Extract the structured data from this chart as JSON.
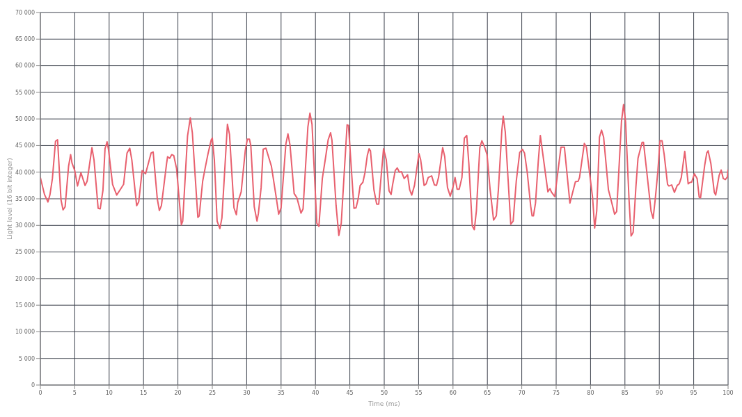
{
  "chart_data": {
    "type": "line",
    "xlabel": "Time (ms)",
    "ylabel": "Light level (16 bit integer)",
    "xlim": [
      0,
      100
    ],
    "xticks": [
      0,
      5,
      10,
      15,
      20,
      25,
      30,
      35,
      40,
      45,
      50,
      55,
      60,
      65,
      70,
      75,
      80,
      85,
      90,
      95,
      100
    ],
    "ylim": [
      0,
      70000
    ],
    "yticks": [
      {
        "value": 0,
        "label": "0"
      },
      {
        "value": 5000,
        "label": "5 000"
      },
      {
        "value": 10000,
        "label": "10 000"
      },
      {
        "value": 15000,
        "label": "15 000"
      },
      {
        "value": 20000,
        "label": "20 000"
      },
      {
        "value": 25000,
        "label": "25 000"
      },
      {
        "value": 30000,
        "label": "30 000"
      },
      {
        "value": 35000,
        "label": "35 000"
      },
      {
        "value": 40000,
        "label": "40 000"
      },
      {
        "value": 45000,
        "label": "45 000"
      },
      {
        "value": 50000,
        "label": "50 000"
      },
      {
        "value": 55000,
        "label": "55 000"
      },
      {
        "value": 60000,
        "label": "60 000"
      },
      {
        "value": 65000,
        "label": "65 000"
      },
      {
        "value": 70000,
        "label": "70 000"
      }
    ],
    "grid": true,
    "legend": false,
    "marker": "none",
    "line_style": "solid",
    "series": [
      {
        "color": "#e8606e",
        "x": [
          0,
          0.6,
          1.1,
          1.4,
          1.75,
          2.2,
          2.5,
          3.0,
          3.3,
          3.6,
          4.1,
          4.4,
          4.6,
          5.0,
          5.4,
          5.9,
          6.5,
          6.8,
          7.5,
          7.8,
          8.4,
          8.7,
          9.1,
          9.4,
          9.7,
          9.9,
          10.5,
          11.1,
          11.65,
          12.1,
          12.6,
          13.0,
          13.3,
          14.0,
          14.3,
          14.8,
          15.3,
          16.1,
          16.4,
          17.0,
          17.3,
          17.6,
          18.35,
          18.5,
          18.8,
          19.1,
          19.4,
          19.8,
          20.5,
          20.7,
          21.4,
          21.8,
          22.1,
          22.9,
          23.1,
          23.6,
          23.95,
          24.4,
          24.85,
          25.0,
          25.3,
          25.7,
          26.1,
          26.4,
          27.2,
          27.5,
          28.15,
          28.5,
          28.7,
          29.2,
          29.8,
          30.1,
          30.4,
          30.6,
          31.1,
          31.5,
          31.7,
          32.1,
          32.4,
          32.8,
          33.6,
          34.3,
          34.65,
          35.0,
          35.7,
          36.0,
          36.3,
          36.9,
          37.3,
          37.9,
          38.2,
          38.9,
          39.2,
          39.5,
          40.2,
          40.5,
          41.0,
          41.5,
          41.85,
          42.2,
          42.4,
          43.0,
          43.4,
          43.75,
          44.6,
          44.8,
          45.6,
          45.9,
          46.2,
          46.5,
          46.9,
          47.2,
          47.55,
          47.8,
          48.0,
          48.5,
          48.9,
          49.2,
          49.9,
          50.3,
          50.7,
          51.0,
          51.2,
          51.6,
          51.9,
          52.2,
          52.5,
          52.9,
          53.4,
          53.7,
          54.0,
          54.4,
          55.05,
          55.3,
          55.8,
          56.1,
          56.4,
          56.9,
          57.3,
          57.6,
          57.9,
          58.5,
          58.8,
          59.2,
          59.6,
          60.0,
          60.3,
          60.6,
          60.9,
          61.3,
          61.65,
          62.0,
          62.3,
          62.8,
          63.1,
          63.4,
          63.9,
          64.2,
          64.6,
          64.95,
          65.4,
          65.9,
          66.3,
          66.6,
          67.1,
          67.3,
          67.6,
          68.1,
          68.4,
          68.75,
          69.2,
          69.7,
          70.1,
          70.4,
          70.8,
          71.3,
          71.5,
          71.7,
          72.0,
          72.4,
          72.7,
          73.0,
          73.8,
          74.1,
          74.3,
          74.8,
          75.7,
          76.2,
          77.0,
          77.8,
          78.2,
          78.4,
          79.1,
          79.4,
          80.3,
          80.6,
          80.9,
          81.3,
          81.6,
          81.9,
          82.6,
          83.1,
          83.5,
          83.8,
          84.5,
          84.8,
          85.1,
          85.6,
          85.9,
          86.2,
          86.6,
          86.9,
          87.5,
          87.7,
          88.2,
          88.8,
          89.1,
          89.4,
          89.8,
          90.1,
          90.4,
          90.7,
          91.2,
          91.4,
          91.8,
          92.2,
          92.6,
          92.9,
          93.2,
          93.7,
          94.2,
          94.5,
          94.7,
          95.1,
          95.5,
          95.8,
          96.0,
          96.6,
          96.9,
          97.1,
          97.5,
          98.0,
          98.2,
          98.7,
          99.0,
          99.3,
          99.6,
          99.9,
          100
        ],
        "values": [
          39000,
          35800,
          34400,
          35800,
          38800,
          45800,
          46100,
          34800,
          32900,
          33500,
          41100,
          43300,
          41700,
          40300,
          37400,
          39900,
          37500,
          38300,
          44600,
          42300,
          33200,
          33100,
          36600,
          44400,
          45700,
          44300,
          37700,
          35700,
          36800,
          37700,
          43600,
          44500,
          42300,
          33700,
          34400,
          40300,
          39700,
          43600,
          43800,
          35000,
          32800,
          33700,
          41600,
          42900,
          42600,
          43300,
          43100,
          40700,
          30100,
          30800,
          46800,
          50200,
          47400,
          31500,
          31800,
          38300,
          40700,
          43600,
          46100,
          46400,
          42300,
          30800,
          29400,
          31400,
          49000,
          47100,
          33300,
          32000,
          34300,
          36300,
          44100,
          46200,
          46200,
          45000,
          33500,
          30800,
          32200,
          37100,
          44300,
          44500,
          41100,
          35200,
          32100,
          33300,
          45300,
          47200,
          45100,
          36000,
          35200,
          32300,
          33100,
          48500,
          51100,
          49000,
          30400,
          29800,
          38800,
          43000,
          46100,
          47400,
          46000,
          33700,
          28100,
          30400,
          48900,
          48800,
          33200,
          33300,
          34900,
          37500,
          38100,
          39900,
          43200,
          44400,
          44000,
          36700,
          34000,
          34000,
          44400,
          42300,
          36500,
          35800,
          37500,
          40300,
          40800,
          40000,
          40100,
          38800,
          39500,
          36700,
          35700,
          37500,
          43500,
          42300,
          37500,
          37800,
          39000,
          39300,
          37600,
          37500,
          39000,
          44600,
          42900,
          37100,
          35500,
          37200,
          39000,
          36800,
          36800,
          39000,
          46400,
          46900,
          41700,
          29900,
          29200,
          32700,
          44600,
          45900,
          44700,
          43300,
          36700,
          31000,
          31800,
          36700,
          47800,
          50500,
          47600,
          36700,
          30200,
          30800,
          38300,
          43700,
          44300,
          43600,
          39900,
          33600,
          31800,
          31800,
          34200,
          42000,
          46900,
          44000,
          36300,
          36900,
          36300,
          35400,
          44700,
          44700,
          34200,
          38200,
          38300,
          39000,
          45400,
          44700,
          35200,
          29500,
          32700,
          46600,
          47900,
          46600,
          36700,
          34200,
          32100,
          32600,
          49500,
          52700,
          49400,
          34800,
          28000,
          28700,
          37300,
          42600,
          45600,
          45600,
          39800,
          32700,
          31300,
          34800,
          40300,
          45900,
          45900,
          43400,
          37700,
          37400,
          37600,
          36200,
          37500,
          37800,
          39000,
          43900,
          37800,
          38100,
          38100,
          39700,
          38800,
          35300,
          35200,
          41300,
          43600,
          44000,
          41600,
          36200,
          35700,
          39400,
          40400,
          38800,
          38600,
          39100,
          40500
        ]
      }
    ]
  }
}
